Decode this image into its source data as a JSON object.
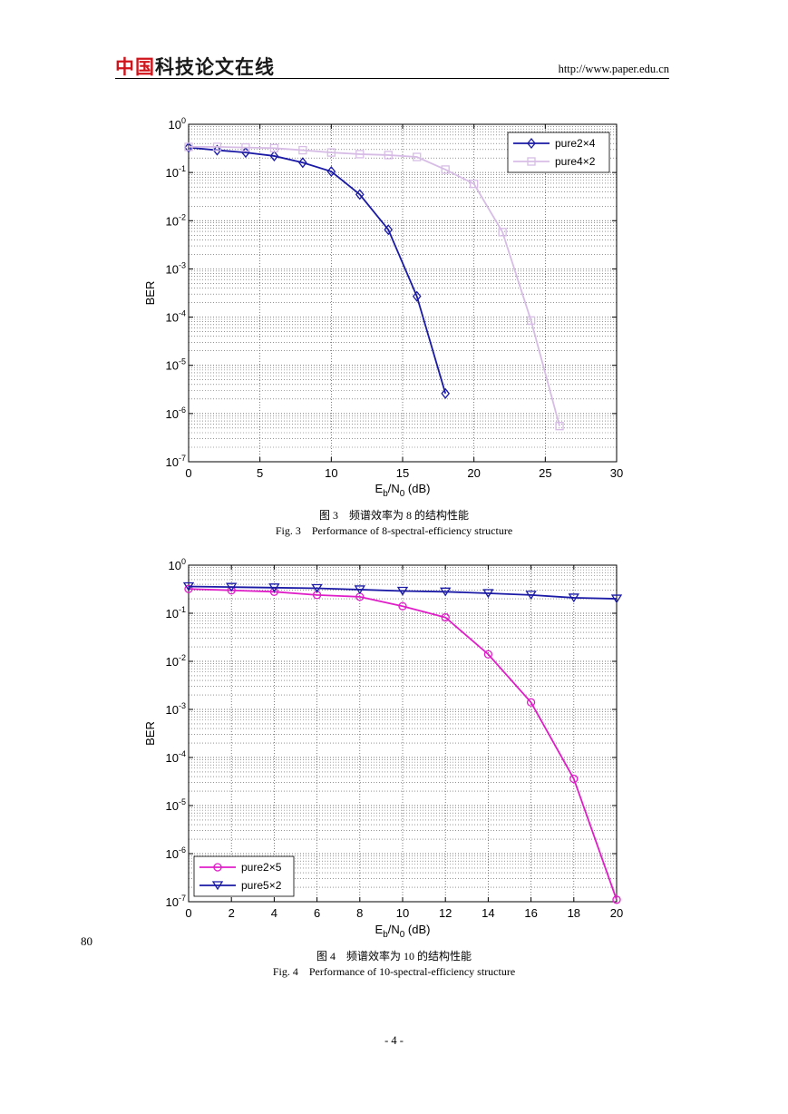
{
  "header": {
    "logo_red": "中国",
    "logo_dark": "科技论文在线",
    "url": "http://www.paper.edu.cn"
  },
  "figure3": {
    "caption_cn": "图 3　频谱效率为 8 的结构性能",
    "caption_en": "Fig. 3　Performance of 8-spectral-efficiency structure"
  },
  "figure4": {
    "caption_cn": "图 4　频谱效率为 10 的结构性能",
    "caption_en": "Fig. 4　Performance of 10-spectral-efficiency structure"
  },
  "line_number": "80",
  "page_number": "- 4 -",
  "chart_data": [
    {
      "type": "line",
      "xlabel": "E_b/N_0 (dB)",
      "ylabel": "BER",
      "xlim": [
        0,
        30
      ],
      "ylim": [
        1e-07,
        1
      ],
      "yscale": "log",
      "xticks": [
        0,
        5,
        10,
        15,
        20,
        25,
        30
      ],
      "yticks": [
        "10^0",
        "10^-1",
        "10^-2",
        "10^-3",
        "10^-4",
        "10^-5",
        "10^-6",
        "10^-7"
      ],
      "grid": true,
      "legend_position": "top-right",
      "series": [
        {
          "name": "pure2×4",
          "color": "#1a1aa6",
          "marker": "diamond",
          "x": [
            0,
            2,
            4,
            6,
            8,
            10,
            12,
            14,
            16,
            18
          ],
          "y": [
            0.33,
            0.29,
            0.26,
            0.22,
            0.16,
            0.105,
            0.035,
            0.0065,
            0.00027,
            2.6e-06
          ]
        },
        {
          "name": "pure4×2",
          "color": "#d7bde6",
          "marker": "square",
          "x": [
            0,
            2,
            4,
            6,
            8,
            10,
            12,
            14,
            16,
            18,
            20,
            22,
            24,
            26
          ],
          "y": [
            0.34,
            0.34,
            0.33,
            0.32,
            0.29,
            0.26,
            0.24,
            0.23,
            0.21,
            0.115,
            0.058,
            0.0058,
            8.5e-05,
            5.5e-07
          ]
        }
      ]
    },
    {
      "type": "line",
      "xlabel": "E_b/N_0 (dB)",
      "ylabel": "BER",
      "xlim": [
        0,
        20
      ],
      "ylim": [
        1e-07,
        1
      ],
      "yscale": "log",
      "xticks": [
        0,
        2,
        4,
        6,
        8,
        10,
        12,
        14,
        16,
        18,
        20
      ],
      "yticks": [
        "10^0",
        "10^-1",
        "10^-2",
        "10^-3",
        "10^-4",
        "10^-5",
        "10^-6",
        "10^-7"
      ],
      "grid": true,
      "legend_position": "bottom-left",
      "series": [
        {
          "name": "pure2×5",
          "color": "#e01ec8",
          "marker": "circle",
          "x": [
            0,
            2,
            4,
            6,
            8,
            10,
            12,
            14,
            16,
            18,
            20
          ],
          "y": [
            0.32,
            0.3,
            0.28,
            0.24,
            0.22,
            0.14,
            0.082,
            0.014,
            0.0014,
            3.6e-05,
            1.1e-07
          ]
        },
        {
          "name": "pure5×2",
          "color": "#1a1aa6",
          "marker": "triangle-down",
          "x": [
            0,
            2,
            4,
            6,
            8,
            10,
            12,
            14,
            16,
            18,
            20
          ],
          "y": [
            0.36,
            0.35,
            0.34,
            0.33,
            0.31,
            0.29,
            0.28,
            0.26,
            0.24,
            0.21,
            0.2
          ]
        }
      ]
    }
  ]
}
